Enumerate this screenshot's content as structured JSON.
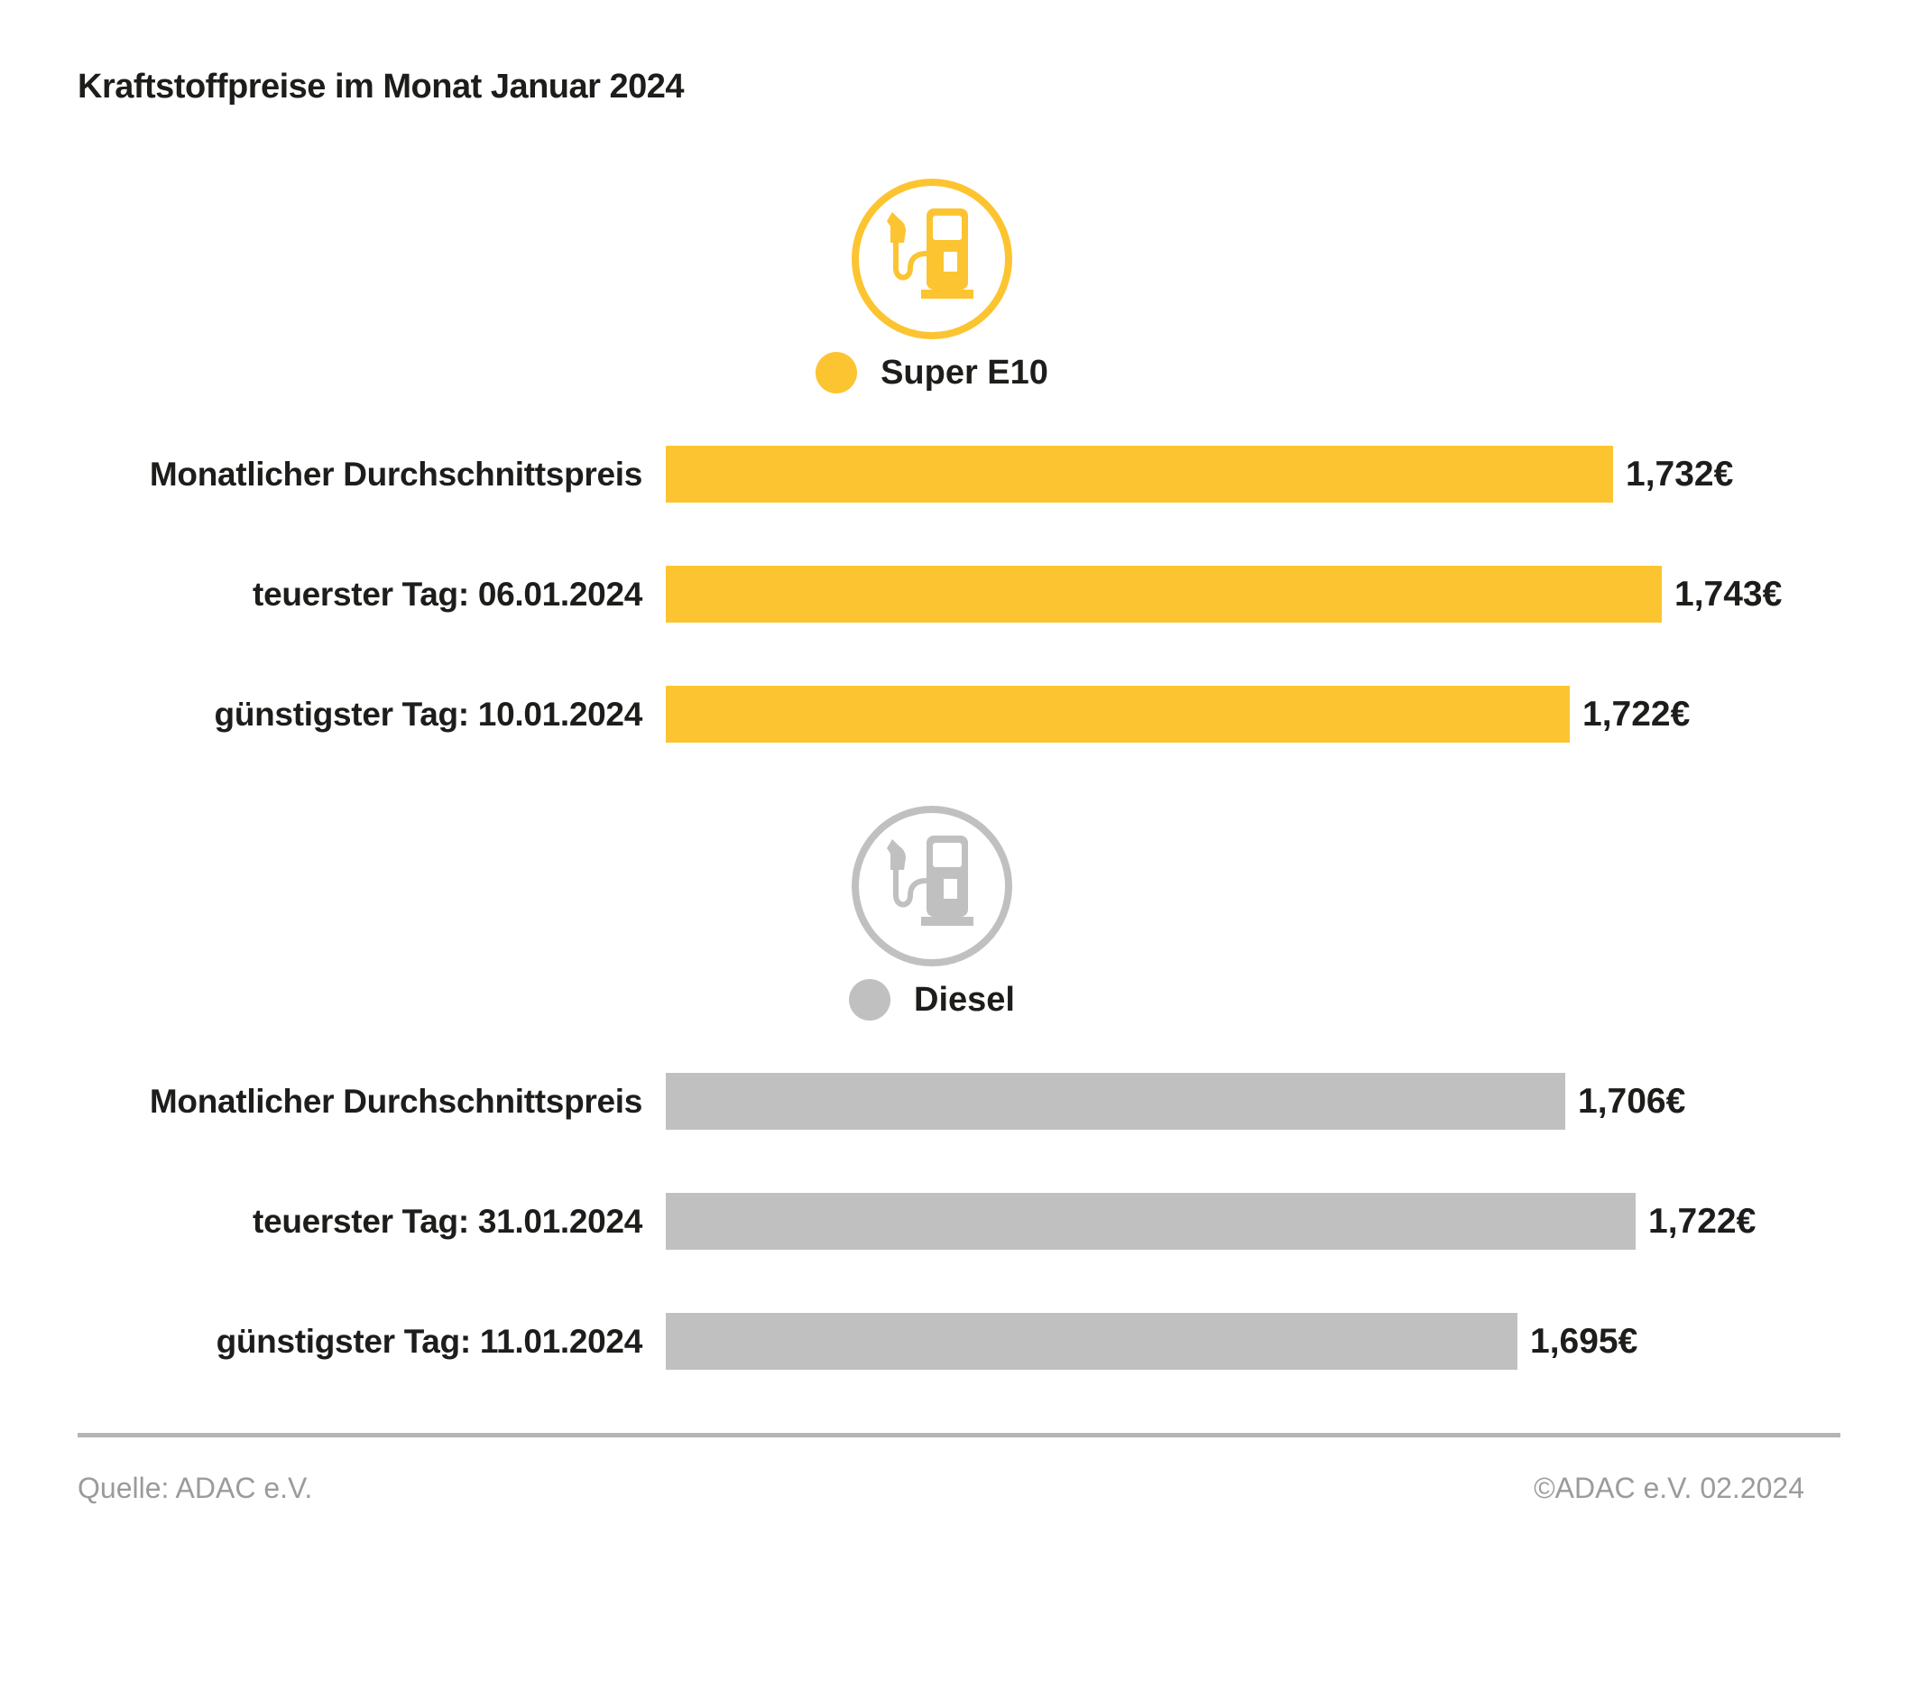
{
  "title": "Kraftstoffpreise im Monat Januar 2024",
  "footer": {
    "source": "Quelle: ADAC e.V.",
    "copyright": "©ADAC e.V. 02.2024"
  },
  "colors": {
    "super_e10": "#FCC430",
    "diesel": "#C0C0C0",
    "text": "#1D1D1B",
    "footer_text": "#9B9B9B",
    "divider": "#B5B5B5",
    "background": "#FFFFFF"
  },
  "chart_data": {
    "type": "bar",
    "orientation": "horizontal",
    "title": "Kraftstoffpreise im Monat Januar 2024",
    "value_unit": "€",
    "legend_position": "above-each-section",
    "grid": false,
    "sections": [
      {
        "fuel": "Super E10",
        "color": "#FCC430",
        "icon": "fuel-pump-icon",
        "axis": {
          "min": 1.516,
          "max": 1.755
        },
        "bars": [
          {
            "label": "Monatlicher Durchschnittspreis",
            "value": 1.732,
            "display_value": "1,732€"
          },
          {
            "label": "teuerster Tag: 06.01.2024",
            "value": 1.743,
            "display_value": "1,743€"
          },
          {
            "label": "günstigster Tag: 10.01.2024",
            "value": 1.722,
            "display_value": "1,722€"
          }
        ]
      },
      {
        "fuel": "Diesel",
        "color": "#C0C0C0",
        "icon": "fuel-pump-icon",
        "axis": {
          "min": 1.5,
          "max": 1.74
        },
        "bars": [
          {
            "label": "Monatlicher Durchschnittspreis",
            "value": 1.706,
            "display_value": "1,706€"
          },
          {
            "label": "teuerster Tag: 31.01.2024",
            "value": 1.722,
            "display_value": "1,722€"
          },
          {
            "label": "günstigster Tag: 11.01.2024",
            "value": 1.695,
            "display_value": "1,695€"
          }
        ]
      }
    ]
  }
}
